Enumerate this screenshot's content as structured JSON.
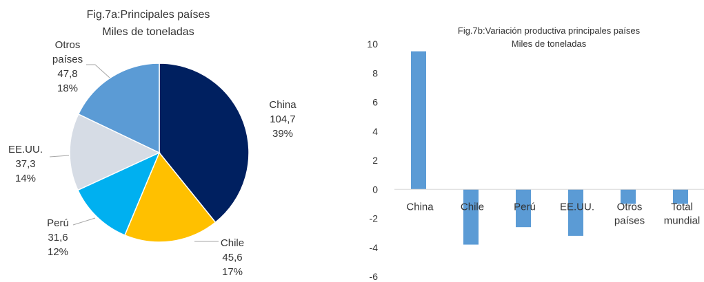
{
  "chart_data": [
    {
      "type": "pie",
      "title": "Fig.7a:Principales países",
      "subtitle": "Miles de toneladas",
      "slices": [
        {
          "label": "China",
          "value": 104.7,
          "value_text": "104,7",
          "percent_text": "39%",
          "color": "#002060"
        },
        {
          "label": "Chile",
          "value": 45.6,
          "value_text": "45,6",
          "percent_text": "17%",
          "color": "#FFC000"
        },
        {
          "label": "Perú",
          "value": 31.6,
          "value_text": "31,6",
          "percent_text": "12%",
          "color": "#00B0F0"
        },
        {
          "label": "EE.UU.",
          "value": 37.3,
          "value_text": "37,3",
          "percent_text": "14%",
          "color": "#D6DCE5"
        },
        {
          "label": "Otros países",
          "label_lines": [
            "Otros",
            "países"
          ],
          "value": 47.8,
          "value_text": "47,8",
          "percent_text": "18%",
          "color": "#5B9BD5"
        }
      ]
    },
    {
      "type": "bar",
      "title": "Fig.7b:Variación productiva principales países",
      "subtitle": "Miles de toneladas",
      "categories": [
        "China",
        "Chile",
        "Perú",
        "EE.UU.",
        "Otros países",
        "Total mundial"
      ],
      "category_lines": [
        [
          "China"
        ],
        [
          "Chile"
        ],
        [
          "Perú"
        ],
        [
          "EE.UU."
        ],
        [
          "Otros",
          "países"
        ],
        [
          "Total",
          "mundial"
        ]
      ],
      "values": [
        9.5,
        -3.8,
        -2.6,
        -3.2,
        -1.0,
        -1.0
      ],
      "ylim": [
        -6,
        10
      ],
      "yticks": [
        10,
        8,
        6,
        4,
        2,
        0,
        -2,
        -4,
        -6
      ],
      "bar_color": "#5B9BD5",
      "grid": false,
      "legend": false
    }
  ]
}
